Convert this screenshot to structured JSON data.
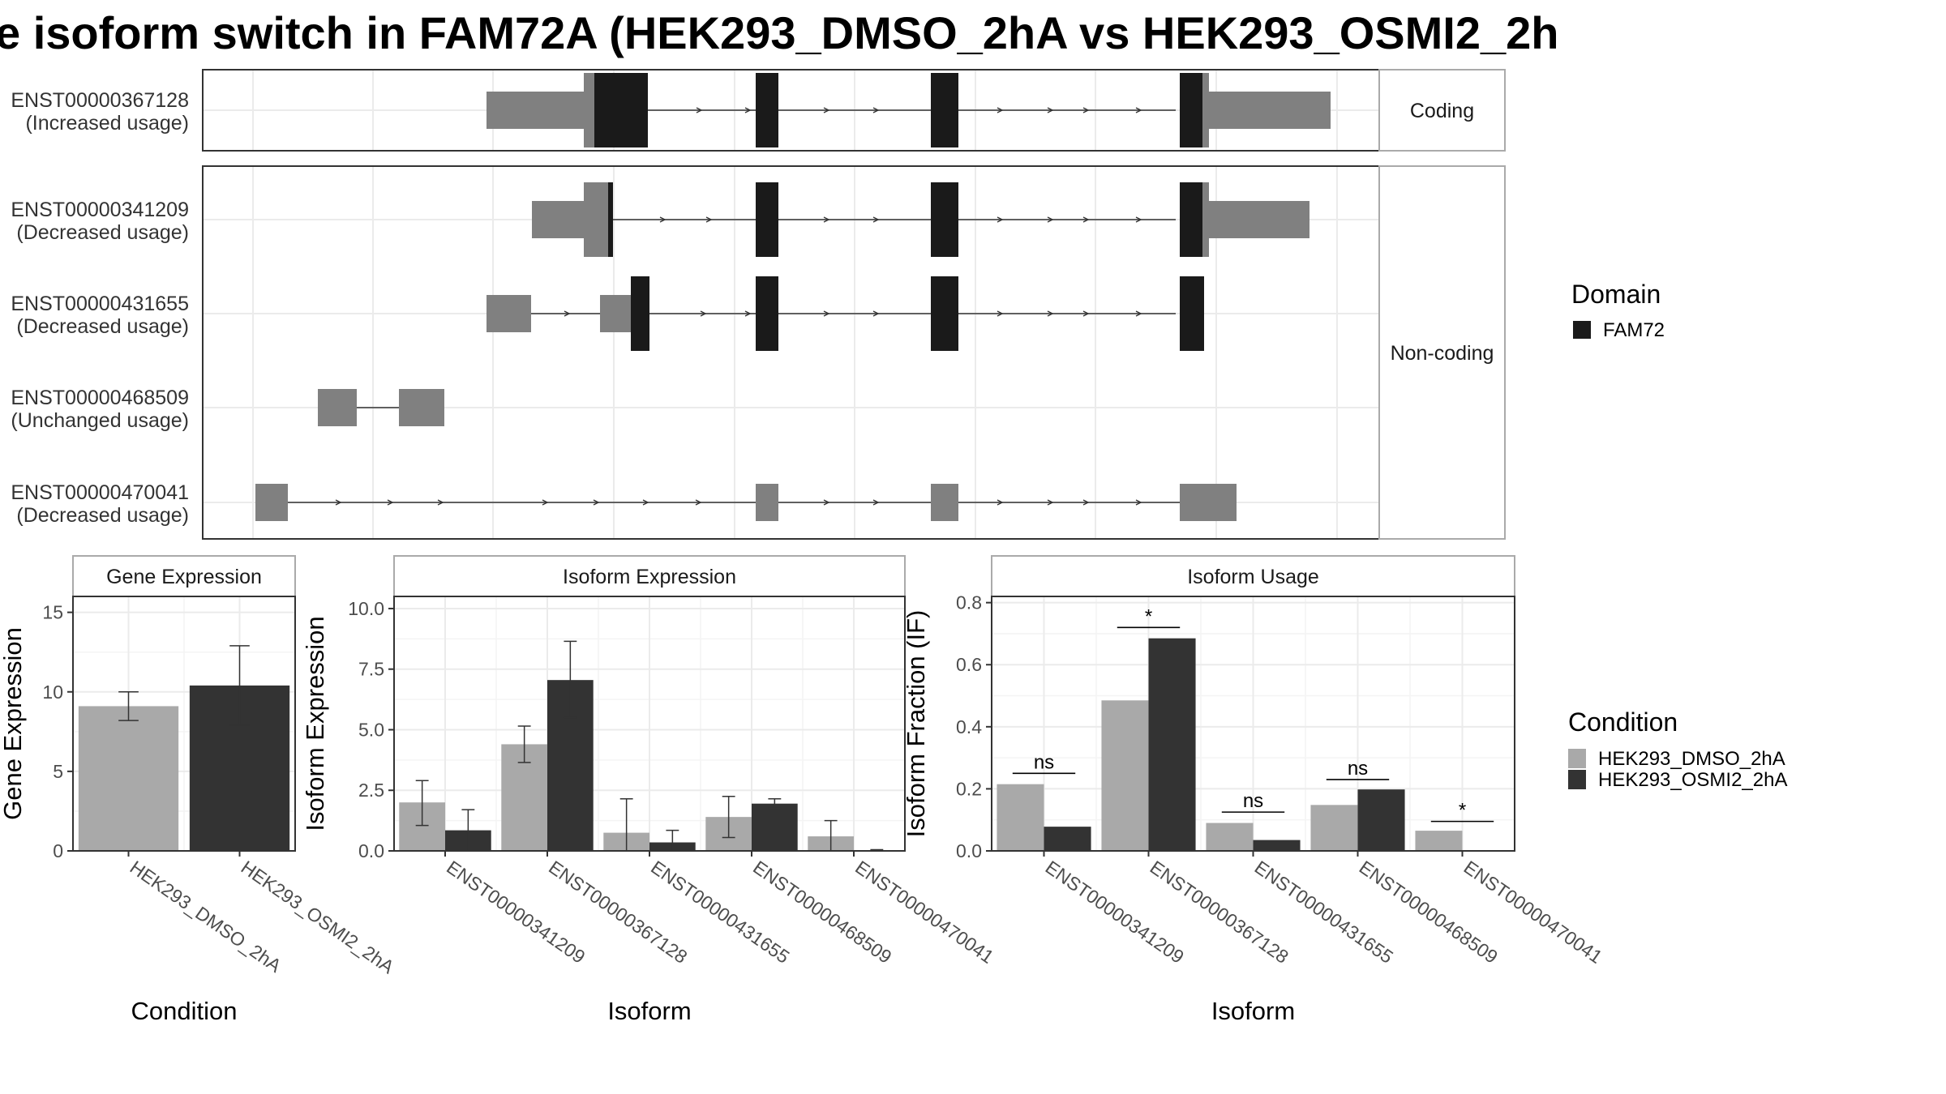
{
  "title": "e isoform switch in FAM72A (HEK293_DMSO_2hA vs HEK293_OSMI2_2h",
  "colors": {
    "dmso": "#a9a9a9",
    "osmi": "#333333",
    "domain": "#1a1a1a",
    "exon": "#808080",
    "grid": "#ebebeb"
  },
  "structure": {
    "groups": [
      "Coding",
      "Non-coding"
    ],
    "transcripts": [
      {
        "id": "ENST00000367128",
        "usage": "(Increased usage)",
        "group": "Coding"
      },
      {
        "id": "ENST00000341209",
        "usage": "(Decreased usage)",
        "group": "Non-coding"
      },
      {
        "id": "ENST00000431655",
        "usage": "(Decreased usage)",
        "group": "Non-coding"
      },
      {
        "id": "ENST00000468509",
        "usage": "(Unchanged usage)",
        "group": "Non-coding"
      },
      {
        "id": "ENST00000470041",
        "usage": "(Decreased usage)",
        "group": "Non-coding"
      }
    ]
  },
  "legend": {
    "domain_title": "Domain",
    "domain_items": [
      "FAM72"
    ],
    "condition_title": "Condition",
    "condition_items": [
      "HEK293_DMSO_2hA",
      "HEK293_OSMI2_2hA"
    ]
  },
  "chart_data": [
    {
      "type": "bar",
      "title": "Gene Expression",
      "xlabel": "Condition",
      "ylabel": "Gene Expression",
      "ylim": [
        0,
        16
      ],
      "yticks": [
        "0",
        "5",
        "10",
        "15"
      ],
      "categories": [
        "HEK293_DMSO_2hA",
        "HEK293_OSMI2_2hA"
      ],
      "values": [
        9.1,
        10.4
      ],
      "err_low": [
        8.2,
        7.9
      ],
      "err_high": [
        10.0,
        12.9
      ]
    },
    {
      "type": "bar",
      "title": "Isoform Expression",
      "xlabel": "Isoform",
      "ylabel": "Isoform Expression",
      "ylim": [
        0,
        10.5
      ],
      "yticks": [
        "0.0",
        "2.5",
        "5.0",
        "7.5",
        "10.0"
      ],
      "categories": [
        "ENST00000341209",
        "ENST00000367128",
        "ENST00000431655",
        "ENST00000468509",
        "ENST00000470041"
      ],
      "series": [
        {
          "name": "HEK293_DMSO_2hA",
          "values": [
            2.0,
            4.4,
            0.75,
            1.4,
            0.6
          ],
          "err_low": [
            1.05,
            3.65,
            0.0,
            0.55,
            0.0
          ],
          "err_high": [
            2.9,
            5.15,
            2.15,
            2.25,
            1.25
          ]
        },
        {
          "name": "HEK293_OSMI2_2hA",
          "values": [
            0.85,
            7.05,
            0.35,
            1.95,
            0.02
          ],
          "err_low": [
            0.0,
            5.5,
            0.0,
            1.75,
            0.0
          ],
          "err_high": [
            1.7,
            8.65,
            0.85,
            2.15,
            0.05
          ]
        }
      ]
    },
    {
      "type": "bar",
      "title": "Isoform Usage",
      "xlabel": "Isoform",
      "ylabel": "Isoform Fraction (IF)",
      "ylim": [
        0,
        0.82
      ],
      "yticks": [
        "0.0",
        "0.2",
        "0.4",
        "0.6",
        "0.8"
      ],
      "categories": [
        "ENST00000341209",
        "ENST00000367128",
        "ENST00000431655",
        "ENST00000468509",
        "ENST00000470041"
      ],
      "series": [
        {
          "name": "HEK293_DMSO_2hA",
          "values": [
            0.215,
            0.485,
            0.09,
            0.148,
            0.065
          ]
        },
        {
          "name": "HEK293_OSMI2_2hA",
          "values": [
            0.078,
            0.685,
            0.035,
            0.198,
            0.0
          ]
        }
      ],
      "significance": [
        "ns",
        "*",
        "ns",
        "ns",
        "*"
      ],
      "sig_y": [
        0.25,
        0.72,
        0.125,
        0.23,
        0.095
      ]
    }
  ]
}
